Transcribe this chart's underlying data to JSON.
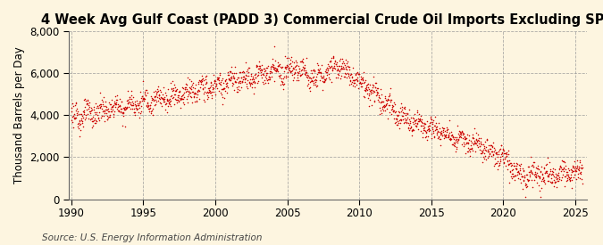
{
  "title": "4 Week Avg Gulf Coast (PADD 3) Commercial Crude Oil Imports Excluding SPR",
  "ylabel": "Thousand Barrels per Day",
  "source": "Source: U.S. Energy Information Administration",
  "background_color": "#FDF5E0",
  "plot_color": "#CC0000",
  "ylim": [
    0,
    8000
  ],
  "xlim": [
    1989.8,
    2025.8
  ],
  "yticks": [
    0,
    2000,
    4000,
    6000,
    8000
  ],
  "xticks": [
    1990,
    1995,
    2000,
    2005,
    2010,
    2015,
    2020,
    2025
  ],
  "marker_size": 2.2,
  "title_fontsize": 10.5,
  "label_fontsize": 8.5,
  "source_fontsize": 7.5
}
